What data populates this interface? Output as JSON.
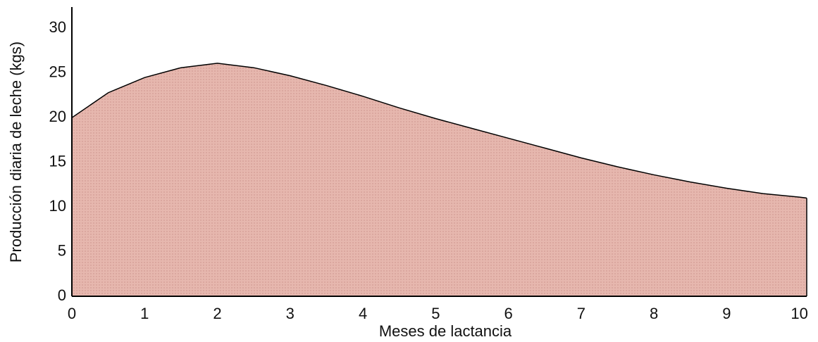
{
  "chart_data": {
    "type": "area",
    "xlabel": "Meses de lactancia",
    "ylabel": "Producción diaria de leche (kgs)",
    "x": [
      0,
      0.5,
      1,
      1.5,
      2,
      2.5,
      3,
      3.5,
      4,
      4.5,
      5,
      5.5,
      6,
      6.5,
      7,
      7.5,
      8,
      8.5,
      9,
      9.5,
      10,
      10.1
    ],
    "values": [
      20,
      22.8,
      24.5,
      25.6,
      26.1,
      25.6,
      24.7,
      23.6,
      22.4,
      21.1,
      19.9,
      18.8,
      17.7,
      16.6,
      15.5,
      14.5,
      13.6,
      12.8,
      12.1,
      11.5,
      11.1,
      11.0
    ],
    "color": "#e6b7ae",
    "line_color": "#000000",
    "xlim": [
      0,
      10.1
    ],
    "xticks": [
      0,
      1,
      2,
      3,
      4,
      5,
      6,
      7,
      8,
      9,
      10
    ],
    "ylim": [
      0,
      32
    ],
    "yticks": [
      0,
      5,
      10,
      15,
      20,
      25,
      30
    ],
    "grid": false
  }
}
